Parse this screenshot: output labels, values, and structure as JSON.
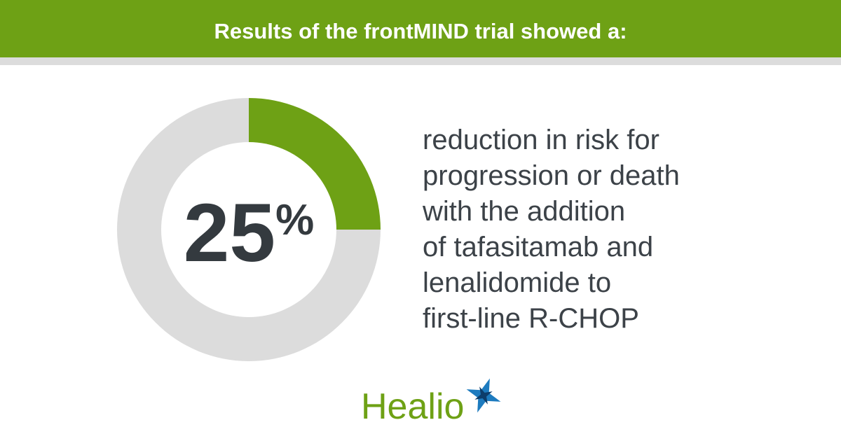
{
  "chart_data": {
    "type": "donut",
    "title": "Results of the frontMIND trial showed a:",
    "values": [
      25,
      75
    ],
    "value_labels": [
      "25%",
      null
    ],
    "colors": [
      "#6ea115",
      "#dcdcdc"
    ],
    "annotation_lines": [
      "reduction in risk for",
      "progression or death",
      "with the addition",
      "of tafasitamab and",
      "lenalidomide to",
      "first-line R-CHOP"
    ],
    "logo": "Healio"
  }
}
